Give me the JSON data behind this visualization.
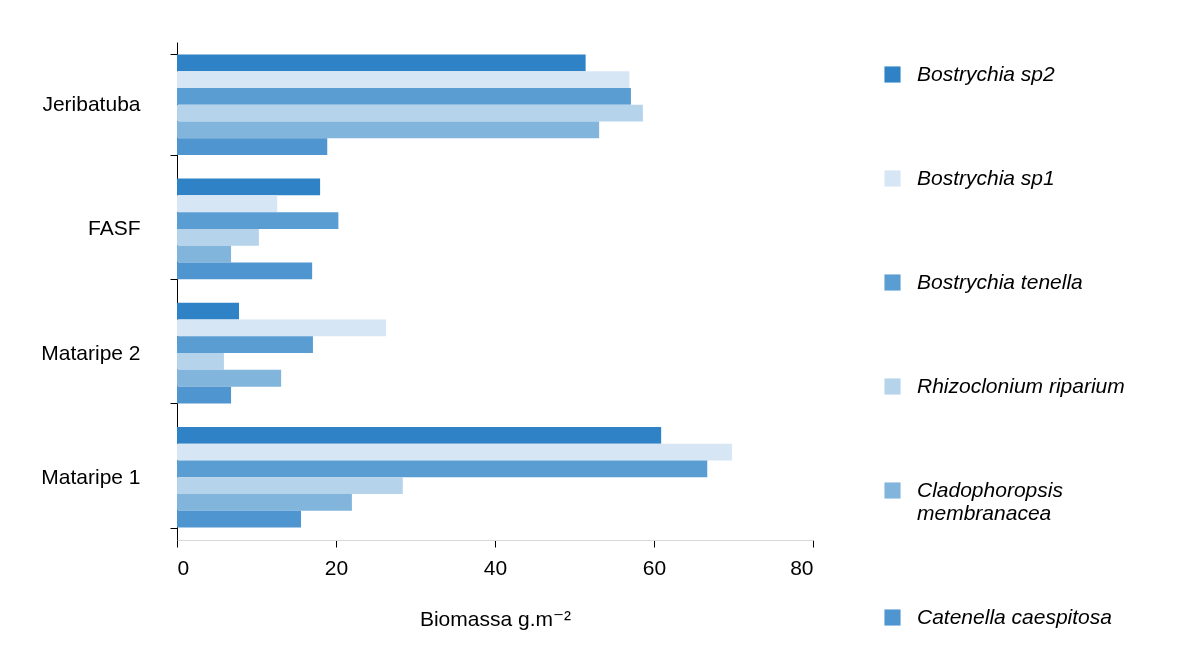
{
  "chart_data": {
    "type": "bar",
    "orientation": "horizontal",
    "xlabel": "Biomassa g.m⁻²",
    "categories": [
      "Jeribatuba",
      "FASF",
      "Mataripe 2",
      "Mataripe 1"
    ],
    "series": [
      {
        "name": "Bostrychia sp2",
        "color": "#2e82c5",
        "values": [
          51.4,
          18.0,
          7.8,
          60.9
        ]
      },
      {
        "name": "Bostrychia sp1",
        "color": "#d6e6f4",
        "values": [
          56.9,
          12.6,
          26.3,
          69.8
        ]
      },
      {
        "name": "Bostrychia tenella",
        "color": "#5a9dd3",
        "values": [
          57.1,
          20.3,
          17.1,
          66.7
        ]
      },
      {
        "name": "Rhizoclonium riparium",
        "color": "#b5d3eb",
        "values": [
          58.6,
          10.3,
          5.9,
          28.4
        ]
      },
      {
        "name": "Cladophoropsis membranacea",
        "color": "#82b5dc",
        "values": [
          53.1,
          6.8,
          13.1,
          22.0
        ]
      },
      {
        "name": "Catenella caespitosa",
        "color": "#4f95d0",
        "values": [
          18.9,
          17.0,
          6.8,
          15.6
        ]
      }
    ],
    "xlim": [
      0,
      80
    ],
    "xticks": [
      0,
      20,
      40,
      60,
      80
    ],
    "grid": false,
    "legend": "right"
  }
}
